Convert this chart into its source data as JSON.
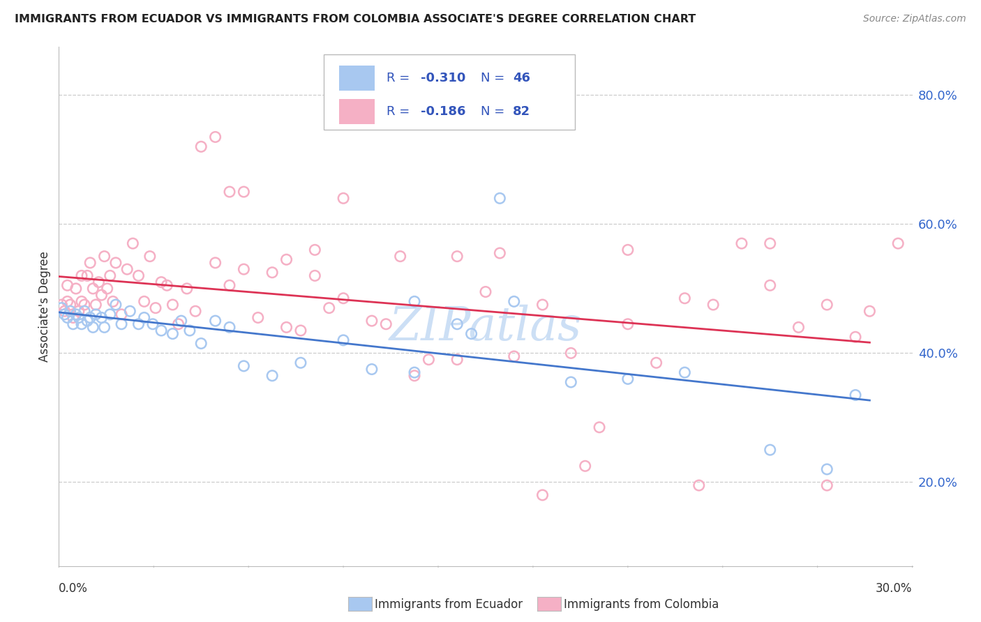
{
  "title": "IMMIGRANTS FROM ECUADOR VS IMMIGRANTS FROM COLOMBIA ASSOCIATE'S DEGREE CORRELATION CHART",
  "source_text": "Source: ZipAtlas.com",
  "ylabel": "Associate's Degree",
  "xlim": [
    0.0,
    0.3
  ],
  "ylim": [
    0.07,
    0.875
  ],
  "yticks": [
    0.2,
    0.4,
    0.6,
    0.8
  ],
  "color_ecuador": "#a8c8f0",
  "color_colombia": "#f5b0c5",
  "line_color_ecuador": "#4477cc",
  "line_color_colombia": "#dd3355",
  "legend_text_color": "#3355bb",
  "watermark_text": "ZIPatlas",
  "watermark_color": "#ccdff5",
  "bg_color": "#ffffff",
  "grid_color": "#cccccc",
  "title_color": "#222222",
  "source_color": "#888888",
  "right_tick_color": "#3366cc",
  "ecuador_x": [
    0.001,
    0.002,
    0.003,
    0.004,
    0.005,
    0.006,
    0.007,
    0.008,
    0.009,
    0.01,
    0.011,
    0.012,
    0.013,
    0.015,
    0.016,
    0.018,
    0.02,
    0.022,
    0.025,
    0.028,
    0.03,
    0.033,
    0.036,
    0.04,
    0.043,
    0.046,
    0.05,
    0.055,
    0.06,
    0.065,
    0.075,
    0.085,
    0.1,
    0.11,
    0.125,
    0.14,
    0.155,
    0.18,
    0.2,
    0.22,
    0.125,
    0.145,
    0.16,
    0.25,
    0.27,
    0.28
  ],
  "ecuador_y": [
    0.47,
    0.46,
    0.455,
    0.465,
    0.445,
    0.46,
    0.455,
    0.445,
    0.465,
    0.45,
    0.455,
    0.44,
    0.46,
    0.455,
    0.44,
    0.46,
    0.475,
    0.445,
    0.465,
    0.445,
    0.455,
    0.445,
    0.435,
    0.43,
    0.45,
    0.435,
    0.415,
    0.45,
    0.44,
    0.38,
    0.365,
    0.385,
    0.42,
    0.375,
    0.37,
    0.445,
    0.64,
    0.355,
    0.36,
    0.37,
    0.48,
    0.43,
    0.48,
    0.25,
    0.22,
    0.335
  ],
  "colombia_x": [
    0.001,
    0.002,
    0.003,
    0.003,
    0.004,
    0.005,
    0.006,
    0.007,
    0.008,
    0.008,
    0.009,
    0.01,
    0.011,
    0.012,
    0.013,
    0.014,
    0.015,
    0.016,
    0.017,
    0.018,
    0.019,
    0.02,
    0.022,
    0.024,
    0.026,
    0.028,
    0.03,
    0.032,
    0.034,
    0.036,
    0.038,
    0.04,
    0.042,
    0.045,
    0.048,
    0.05,
    0.055,
    0.06,
    0.065,
    0.07,
    0.075,
    0.08,
    0.085,
    0.09,
    0.095,
    0.1,
    0.11,
    0.115,
    0.12,
    0.13,
    0.14,
    0.15,
    0.16,
    0.17,
    0.18,
    0.19,
    0.2,
    0.21,
    0.22,
    0.23,
    0.24,
    0.25,
    0.26,
    0.27,
    0.28,
    0.285,
    0.055,
    0.065,
    0.06,
    0.08,
    0.09,
    0.1,
    0.125,
    0.14,
    0.155,
    0.17,
    0.185,
    0.2,
    0.225,
    0.25,
    0.27,
    0.295
  ],
  "colombia_y": [
    0.475,
    0.465,
    0.48,
    0.505,
    0.475,
    0.455,
    0.5,
    0.465,
    0.48,
    0.52,
    0.475,
    0.52,
    0.54,
    0.5,
    0.475,
    0.51,
    0.49,
    0.55,
    0.5,
    0.52,
    0.48,
    0.54,
    0.46,
    0.53,
    0.57,
    0.52,
    0.48,
    0.55,
    0.47,
    0.51,
    0.505,
    0.475,
    0.445,
    0.5,
    0.465,
    0.72,
    0.54,
    0.505,
    0.53,
    0.455,
    0.525,
    0.44,
    0.435,
    0.52,
    0.47,
    0.64,
    0.45,
    0.445,
    0.55,
    0.39,
    0.55,
    0.495,
    0.395,
    0.475,
    0.4,
    0.285,
    0.445,
    0.385,
    0.485,
    0.475,
    0.57,
    0.505,
    0.44,
    0.475,
    0.425,
    0.465,
    0.735,
    0.65,
    0.65,
    0.545,
    0.56,
    0.485,
    0.365,
    0.39,
    0.555,
    0.18,
    0.225,
    0.56,
    0.195,
    0.57,
    0.195,
    0.57
  ]
}
